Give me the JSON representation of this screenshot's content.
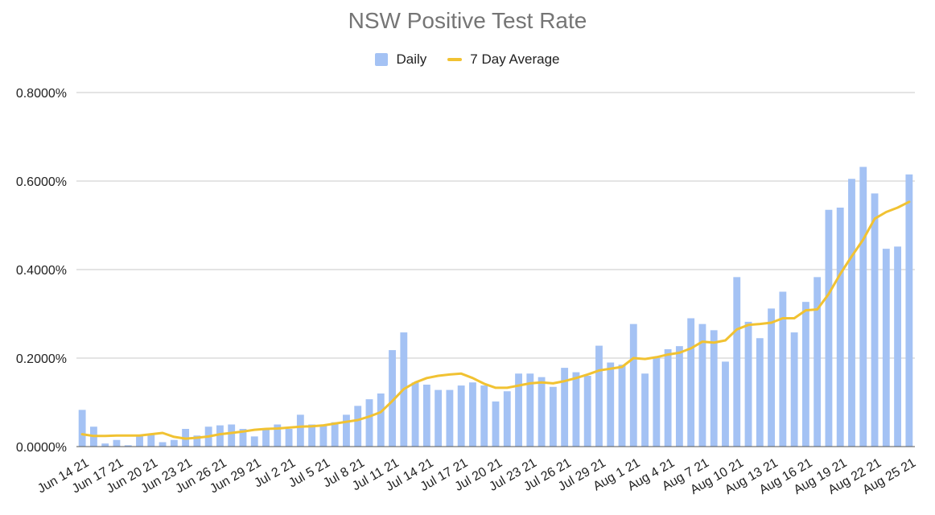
{
  "chart_data": {
    "type": "bar",
    "title": "NSW Positive Test Rate",
    "xlabel": "",
    "ylabel": "",
    "ylim": [
      0,
      0.8
    ],
    "y_ticks": [
      "0.0000%",
      "0.2000%",
      "0.4000%",
      "0.6000%",
      "0.8000%"
    ],
    "y_tick_values": [
      0,
      0.2,
      0.4,
      0.6,
      0.8
    ],
    "grid": true,
    "legend_position": "top-center",
    "categories": [
      "Jun 14 21",
      "Jun 15 21",
      "Jun 16 21",
      "Jun 17 21",
      "Jun 18 21",
      "Jun 19 21",
      "Jun 20 21",
      "Jun 21 21",
      "Jun 22 21",
      "Jun 23 21",
      "Jun 24 21",
      "Jun 25 21",
      "Jun 26 21",
      "Jun 27 21",
      "Jun 28 21",
      "Jun 29 21",
      "Jun 30 21",
      "Jul 1 21",
      "Jul 2 21",
      "Jul 3 21",
      "Jul 4 21",
      "Jul 5 21",
      "Jul 6 21",
      "Jul 7 21",
      "Jul 8 21",
      "Jul 9 21",
      "Jul 10 21",
      "Jul 11 21",
      "Jul 12 21",
      "Jul 13 21",
      "Jul 14 21",
      "Jul 15 21",
      "Jul 16 21",
      "Jul 17 21",
      "Jul 18 21",
      "Jul 19 21",
      "Jul 20 21",
      "Jul 21 21",
      "Jul 22 21",
      "Jul 23 21",
      "Jul 24 21",
      "Jul 25 21",
      "Jul 26 21",
      "Jul 27 21",
      "Jul 28 21",
      "Jul 29 21",
      "Jul 30 21",
      "Jul 31 21",
      "Aug 1 21",
      "Aug 2 21",
      "Aug 3 21",
      "Aug 4 21",
      "Aug 5 21",
      "Aug 6 21",
      "Aug 7 21",
      "Aug 8 21",
      "Aug 9 21",
      "Aug 10 21",
      "Aug 11 21",
      "Aug 12 21",
      "Aug 13 21",
      "Aug 14 21",
      "Aug 15 21",
      "Aug 16 21",
      "Aug 17 21",
      "Aug 18 21",
      "Aug 19 21",
      "Aug 20 21",
      "Aug 21 21",
      "Aug 22 21",
      "Aug 23 21",
      "Aug 24 21",
      "Aug 25 21"
    ],
    "x_tick_labels": [
      "Jun 14 21",
      "Jun 17 21",
      "Jun 20 21",
      "Jun 23 21",
      "Jun 26 21",
      "Jun 29 21",
      "Jul 2 21",
      "Jul 5 21",
      "Jul 8 21",
      "Jul 11 21",
      "Jul 14 21",
      "Jul 17 21",
      "Jul 20 21",
      "Jul 23 21",
      "Jul 26 21",
      "Jul 29 21",
      "Aug 1 21",
      "Aug 4 21",
      "Aug 7 21",
      "Aug 10 21",
      "Aug 13 21",
      "Aug 16 21",
      "Aug 19 21",
      "Aug 22 21",
      "Aug 25 21"
    ],
    "series": [
      {
        "name": "Daily",
        "type": "bar",
        "color": "#a4c2f4",
        "values": [
          0.083,
          0.045,
          0.007,
          0.015,
          0.003,
          0.025,
          0.027,
          0.01,
          0.015,
          0.04,
          0.025,
          0.045,
          0.048,
          0.05,
          0.04,
          0.023,
          0.04,
          0.05,
          0.04,
          0.072,
          0.05,
          0.048,
          0.055,
          0.072,
          0.092,
          0.107,
          0.12,
          0.218,
          0.258,
          0.145,
          0.14,
          0.128,
          0.128,
          0.138,
          0.145,
          0.138,
          0.102,
          0.125,
          0.165,
          0.165,
          0.157,
          0.135,
          0.178,
          0.168,
          0.16,
          0.228,
          0.19,
          0.185,
          0.277,
          0.165,
          0.2,
          0.22,
          0.227,
          0.29,
          0.277,
          0.263,
          0.192,
          0.383,
          0.282,
          0.245,
          0.312,
          0.35,
          0.258,
          0.327,
          0.383,
          0.535,
          0.54,
          0.605,
          0.632,
          0.572,
          0.447,
          0.452,
          0.615
        ]
      },
      {
        "name": "7 Day Average",
        "type": "line",
        "color": "#f1c232",
        "values": [
          0.028,
          0.024,
          0.024,
          0.025,
          0.025,
          0.025,
          0.028,
          0.031,
          0.022,
          0.018,
          0.02,
          0.023,
          0.028,
          0.031,
          0.034,
          0.038,
          0.04,
          0.041,
          0.043,
          0.045,
          0.046,
          0.048,
          0.052,
          0.056,
          0.06,
          0.068,
          0.078,
          0.103,
          0.13,
          0.145,
          0.155,
          0.16,
          0.163,
          0.165,
          0.155,
          0.142,
          0.133,
          0.133,
          0.138,
          0.143,
          0.145,
          0.143,
          0.148,
          0.155,
          0.163,
          0.172,
          0.176,
          0.18,
          0.2,
          0.198,
          0.202,
          0.208,
          0.212,
          0.222,
          0.237,
          0.235,
          0.24,
          0.265,
          0.275,
          0.277,
          0.28,
          0.29,
          0.29,
          0.308,
          0.31,
          0.345,
          0.39,
          0.43,
          0.468,
          0.515,
          0.53,
          0.54,
          0.553
        ]
      }
    ]
  }
}
